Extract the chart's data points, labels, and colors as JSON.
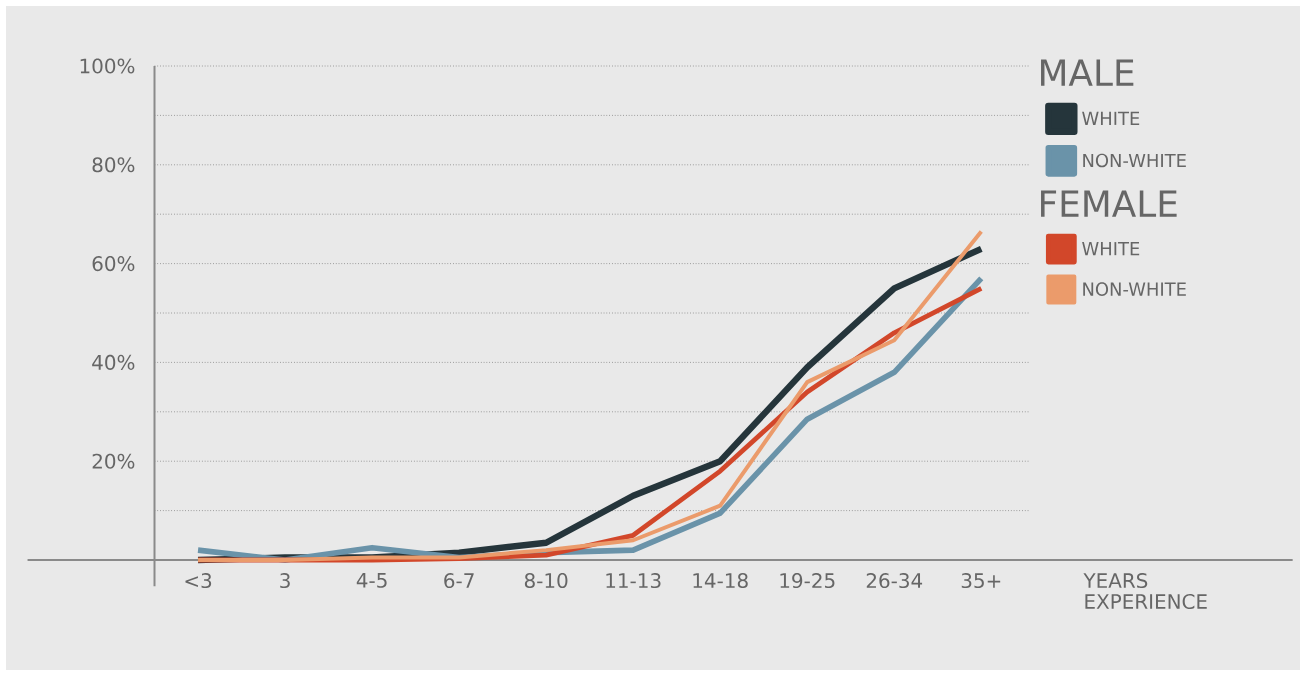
{
  "chart_data": {
    "type": "line",
    "xlabel": "YEARS EXPERIENCE",
    "categories": [
      "<3",
      "3",
      "4-5",
      "6-7",
      "8-10",
      "11-13",
      "14-18",
      "19-25",
      "26-34",
      "35+"
    ],
    "series": [
      {
        "name": "WHITE",
        "color": "#25353b",
        "values": [
          0,
          0.5,
          0.5,
          1.5,
          3.5,
          13,
          20,
          39,
          55,
          63
        ]
      },
      {
        "name": "NON-WHITE",
        "color": "#6a93a9",
        "values": [
          2,
          0,
          2.5,
          0.5,
          1.5,
          2,
          9.5,
          28.5,
          38,
          57
        ]
      },
      {
        "name": "WHITE",
        "color": "#d2472a",
        "values": [
          0,
          0,
          0,
          0.3,
          1,
          5,
          18,
          34,
          46,
          55
        ]
      },
      {
        "name": "NON-WHITE",
        "color": "#eb9b6b",
        "values": [
          0,
          0,
          0.5,
          0.5,
          2,
          4,
          11,
          36,
          44.5,
          66.5
        ]
      }
    ],
    "annotations": [
      "MALE",
      "FEMALE"
    ],
    "ylim": [
      0,
      100
    ],
    "yticks": [
      {
        "value": 0,
        "label": null
      },
      {
        "value": 10,
        "label": null
      },
      {
        "value": 20,
        "label": "20%"
      },
      {
        "value": 30,
        "label": null
      },
      {
        "value": 40,
        "label": "40%"
      },
      {
        "value": 50,
        "label": null
      },
      {
        "value": 60,
        "label": "60%"
      },
      {
        "value": 70,
        "label": null
      },
      {
        "value": 80,
        "label": "80%"
      },
      {
        "value": 90,
        "label": null
      },
      {
        "value": 100,
        "label": "100%"
      }
    ],
    "grid": "y",
    "legend": "right",
    "marker": "none",
    "line_style": "solid"
  }
}
